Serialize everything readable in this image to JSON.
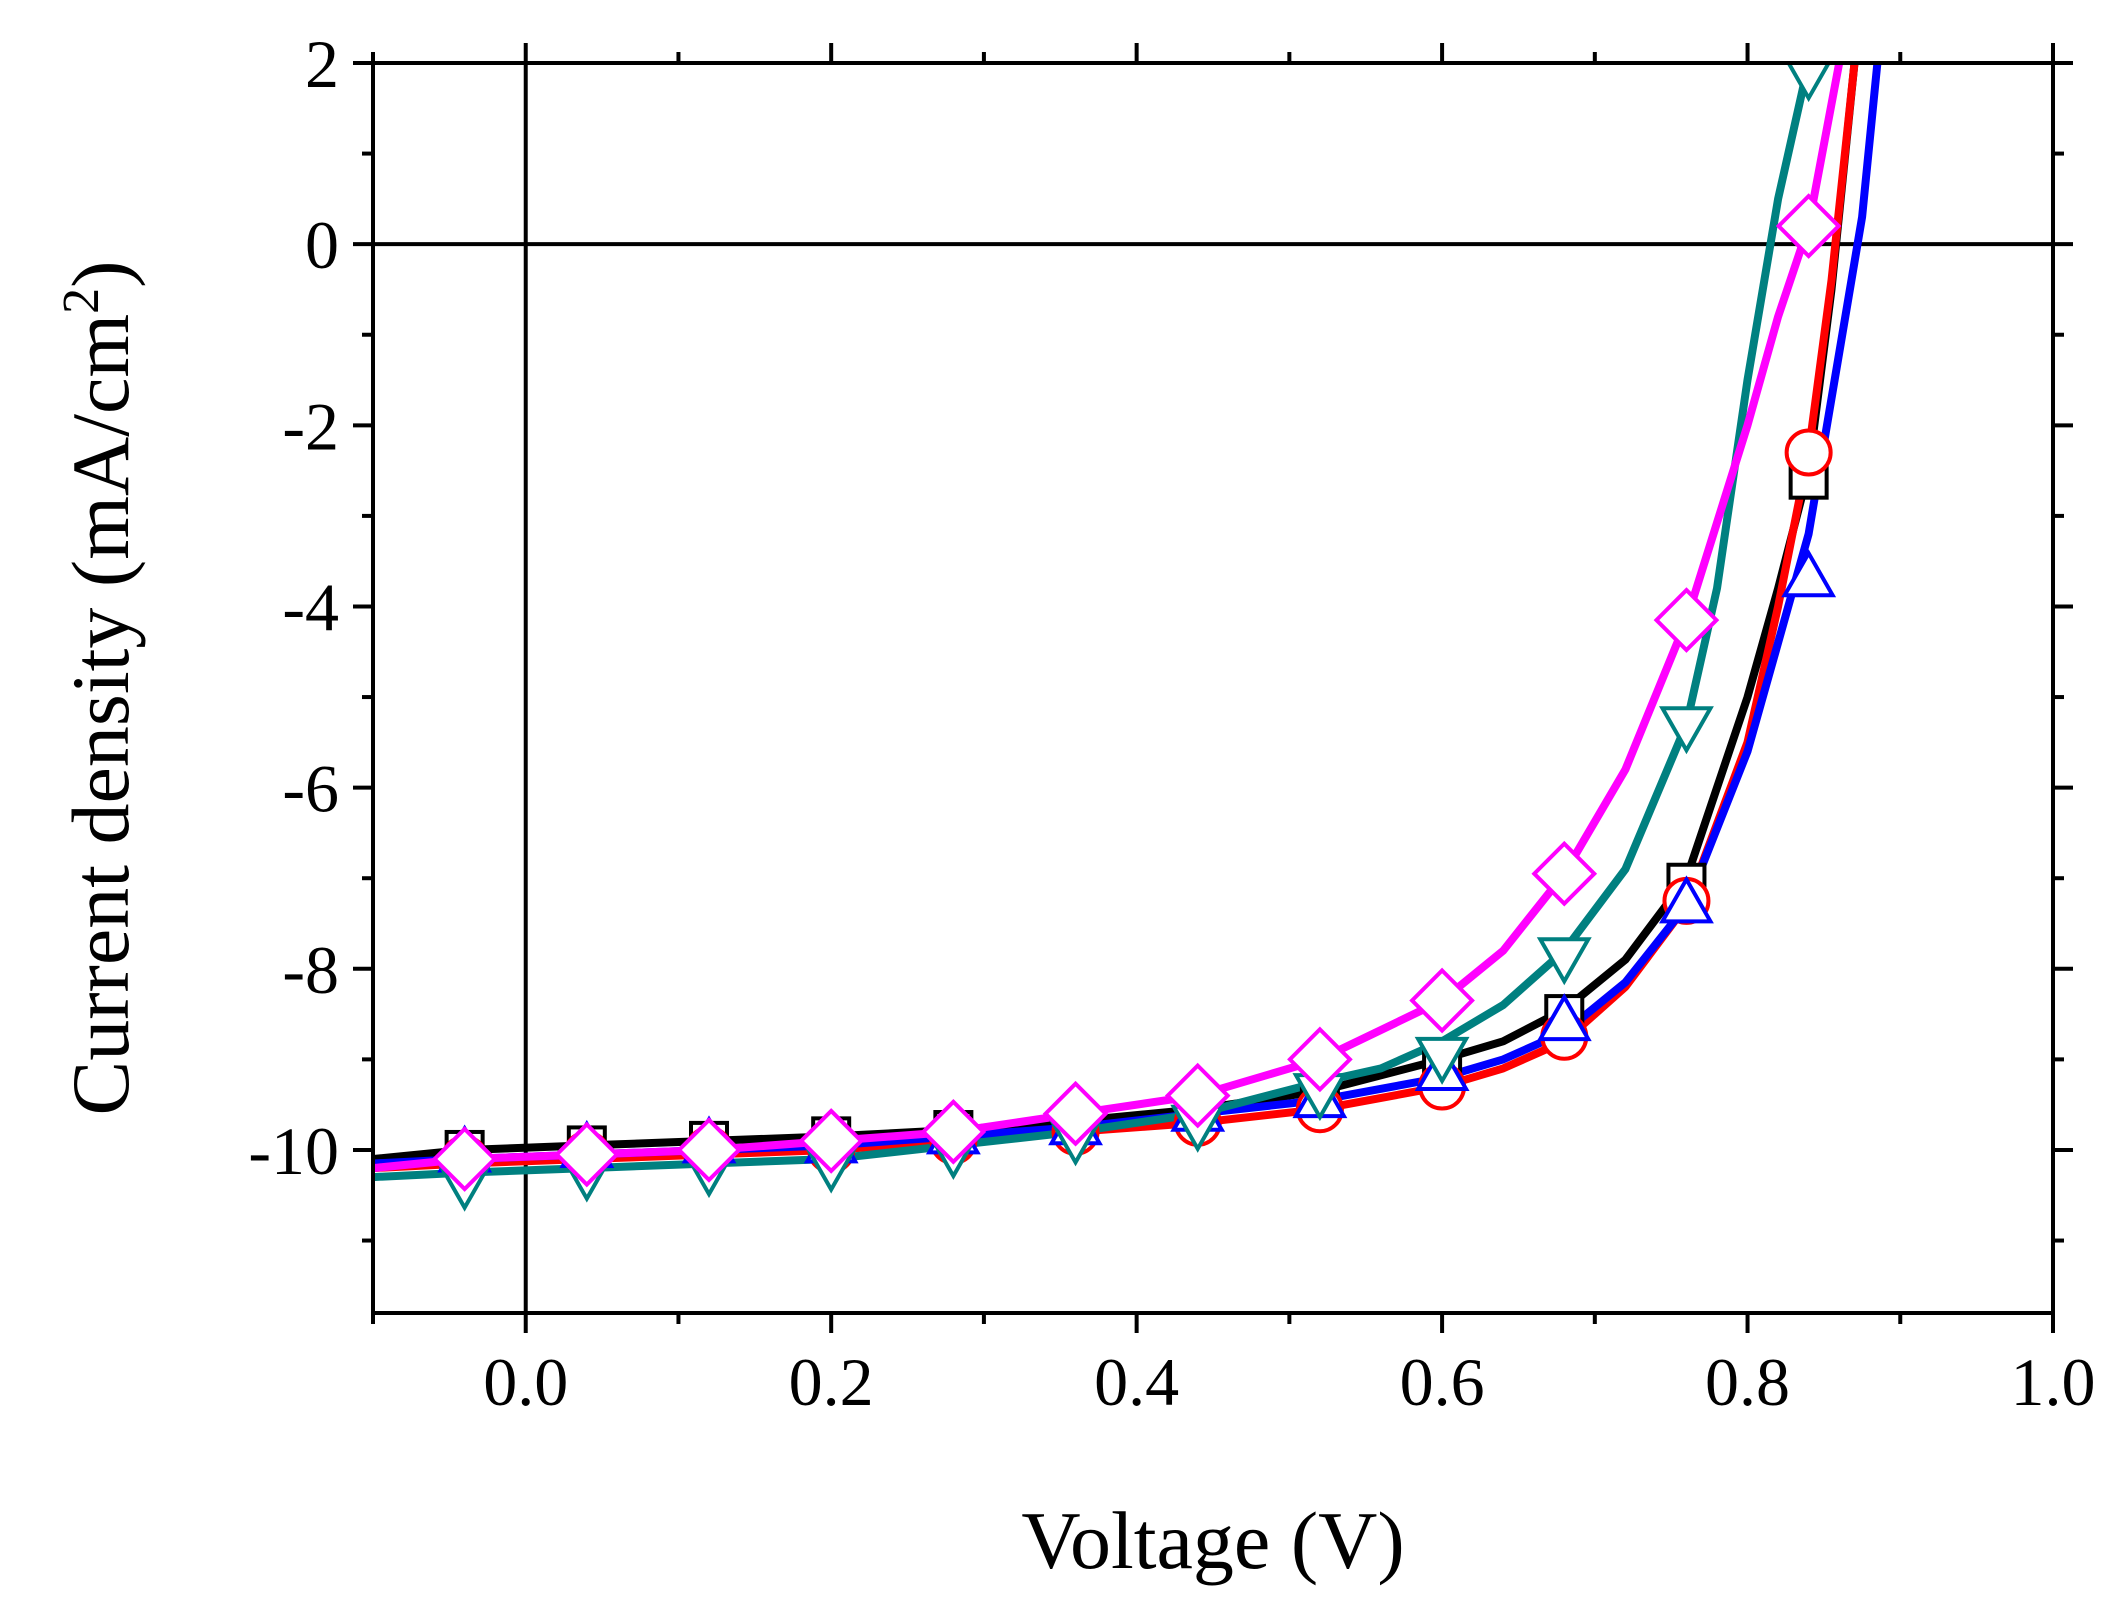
{
  "chart_data": {
    "type": "line",
    "title": "",
    "xlabel": "Voltage (V)",
    "ylabel": {
      "main": "Current density (mA/cm",
      "sup": "2",
      "end": ")"
    },
    "xlim": [
      -0.1,
      1.0
    ],
    "ylim": [
      -11.8,
      2
    ],
    "xticks": [
      0.0,
      0.2,
      0.4,
      0.6,
      0.8,
      1.0
    ],
    "xtick_labels": [
      "0.0",
      "0.2",
      "0.4",
      "0.6",
      "0.8",
      "1.0"
    ],
    "xminor_step": 0.1,
    "yticks": [
      2,
      0,
      -2,
      -4,
      -6,
      -8,
      -10
    ],
    "ytick_labels": [
      "2",
      "0",
      "-2",
      "-4",
      "-6",
      "-8",
      "-10"
    ],
    "yminor_step": 1,
    "reference_lines": {
      "x": 0,
      "y": 0
    },
    "grid": false,
    "series": [
      {
        "name": "black-square",
        "color": "#000000",
        "marker": "square",
        "x": [
          -0.1,
          -0.04,
          0.04,
          0.12,
          0.2,
          0.28,
          0.36,
          0.44,
          0.52,
          0.6,
          0.64,
          0.68,
          0.72,
          0.76,
          0.8,
          0.82,
          0.84,
          0.855,
          0.87
        ],
        "y": [
          -10.1,
          -10.0,
          -9.95,
          -9.9,
          -9.85,
          -9.78,
          -9.68,
          -9.55,
          -9.35,
          -9.0,
          -8.8,
          -8.45,
          -7.9,
          -7.0,
          -5.0,
          -3.8,
          -2.5,
          -0.5,
          2.0
        ],
        "marker_x": [
          -0.04,
          0.04,
          0.12,
          0.2,
          0.28,
          0.36,
          0.44,
          0.52,
          0.6,
          0.68,
          0.76,
          0.84
        ],
        "marker_y": [
          -10.0,
          -9.95,
          -9.9,
          -9.85,
          -9.78,
          -9.68,
          -9.6,
          -9.4,
          -9.05,
          -8.5,
          -7.05,
          -2.6
        ]
      },
      {
        "name": "red-circle",
        "color": "#ff0000",
        "marker": "circle",
        "x": [
          -0.1,
          -0.04,
          0.04,
          0.12,
          0.2,
          0.28,
          0.36,
          0.44,
          0.52,
          0.6,
          0.64,
          0.68,
          0.72,
          0.76,
          0.8,
          0.82,
          0.84,
          0.855,
          0.87
        ],
        "y": [
          -10.2,
          -10.15,
          -10.1,
          -10.05,
          -10.0,
          -9.9,
          -9.8,
          -9.7,
          -9.55,
          -9.3,
          -9.1,
          -8.8,
          -8.2,
          -7.3,
          -5.5,
          -4.0,
          -2.3,
          -0.4,
          2.0
        ],
        "marker_x": [
          -0.04,
          0.04,
          0.12,
          0.2,
          0.28,
          0.36,
          0.44,
          0.52,
          0.6,
          0.68,
          0.76,
          0.84
        ],
        "marker_y": [
          -10.1,
          -10.05,
          -10.0,
          -10.0,
          -9.9,
          -9.8,
          -9.7,
          -9.55,
          -9.3,
          -8.75,
          -7.25,
          -2.3
        ]
      },
      {
        "name": "blue-triangle-up",
        "color": "#0000ff",
        "marker": "triangle-up",
        "x": [
          -0.1,
          -0.04,
          0.04,
          0.12,
          0.2,
          0.28,
          0.36,
          0.44,
          0.52,
          0.6,
          0.64,
          0.68,
          0.72,
          0.76,
          0.8,
          0.82,
          0.84,
          0.86,
          0.875,
          0.885
        ],
        "y": [
          -10.15,
          -10.1,
          -10.05,
          -10.0,
          -9.95,
          -9.85,
          -9.75,
          -9.6,
          -9.45,
          -9.2,
          -9.0,
          -8.7,
          -8.15,
          -7.3,
          -5.6,
          -4.4,
          -3.2,
          -1.2,
          0.3,
          2.0
        ],
        "marker_x": [
          -0.04,
          0.04,
          0.12,
          0.2,
          0.28,
          0.36,
          0.44,
          0.52,
          0.6,
          0.68,
          0.76,
          0.84
        ],
        "marker_y": [
          -10.05,
          -10.0,
          -9.95,
          -9.95,
          -9.85,
          -9.75,
          -9.6,
          -9.45,
          -9.15,
          -8.6,
          -7.3,
          -3.7
        ]
      },
      {
        "name": "teal-triangle-down",
        "color": "#008080",
        "marker": "triangle-down",
        "x": [
          -0.1,
          -0.04,
          0.04,
          0.12,
          0.2,
          0.28,
          0.36,
          0.44,
          0.52,
          0.56,
          0.6,
          0.64,
          0.68,
          0.72,
          0.76,
          0.78,
          0.8,
          0.82,
          0.84
        ],
        "y": [
          -10.3,
          -10.25,
          -10.2,
          -10.15,
          -10.1,
          -9.95,
          -9.8,
          -9.6,
          -9.25,
          -9.1,
          -8.8,
          -8.4,
          -7.8,
          -6.9,
          -5.3,
          -3.8,
          -1.5,
          0.5,
          2.0
        ],
        "marker_x": [
          -0.04,
          0.04,
          0.12,
          0.2,
          0.28,
          0.36,
          0.44,
          0.52,
          0.6,
          0.68,
          0.76,
          0.84
        ],
        "marker_y": [
          -10.35,
          -10.25,
          -10.2,
          -10.15,
          -10.0,
          -9.85,
          -9.7,
          -9.35,
          -8.95,
          -7.85,
          -5.3,
          1.9
        ]
      },
      {
        "name": "magenta-diamond",
        "color": "#ff00ff",
        "marker": "diamond",
        "x": [
          -0.1,
          -0.04,
          0.04,
          0.12,
          0.2,
          0.28,
          0.36,
          0.44,
          0.52,
          0.6,
          0.64,
          0.68,
          0.72,
          0.76,
          0.8,
          0.82,
          0.84,
          0.86
        ],
        "y": [
          -10.2,
          -10.1,
          -10.05,
          -10.0,
          -9.9,
          -9.8,
          -9.6,
          -9.4,
          -9.0,
          -8.35,
          -7.8,
          -6.95,
          -5.8,
          -4.15,
          -2.0,
          -0.8,
          0.2,
          2.0
        ],
        "marker_x": [
          -0.04,
          0.04,
          0.12,
          0.2,
          0.28,
          0.36,
          0.44,
          0.52,
          0.6,
          0.68,
          0.76,
          0.84
        ],
        "marker_y": [
          -10.1,
          -10.05,
          -10.0,
          -9.9,
          -9.8,
          -9.6,
          -9.4,
          -9.0,
          -8.35,
          -6.95,
          -4.15,
          0.2
        ]
      }
    ]
  }
}
